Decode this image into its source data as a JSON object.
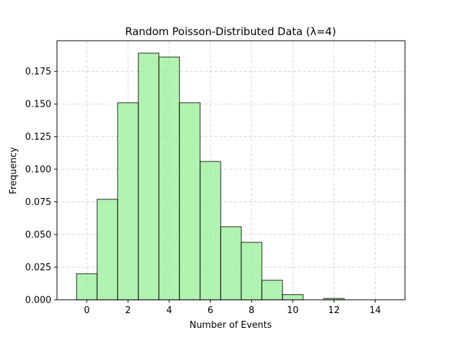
{
  "chart_data": {
    "type": "bar",
    "title": "Random Poisson-Distributed Data (λ=4)",
    "xlabel": "Number of Events",
    "ylabel": "Frequency",
    "x": [
      0,
      1,
      2,
      3,
      4,
      5,
      6,
      7,
      8,
      9,
      10,
      11,
      12,
      13,
      14
    ],
    "values": [
      0.02,
      0.077,
      0.151,
      0.189,
      0.186,
      0.151,
      0.106,
      0.056,
      0.044,
      0.015,
      0.004,
      0.0,
      0.001,
      0.0,
      0.0
    ],
    "xlim": [
      -1.45,
      15.45
    ],
    "ylim": [
      0,
      0.1985
    ],
    "xticks": [
      0,
      2,
      4,
      6,
      8,
      10,
      12,
      14
    ],
    "xtick_labels": [
      "0",
      "2",
      "4",
      "6",
      "8",
      "10",
      "12",
      "14"
    ],
    "yticks": [
      0,
      0.025,
      0.05,
      0.075,
      0.1,
      0.125,
      0.15,
      0.175
    ],
    "ytick_labels": [
      "0.000",
      "0.025",
      "0.050",
      "0.075",
      "0.100",
      "0.125",
      "0.150",
      "0.175"
    ],
    "grid": true,
    "colors": {
      "bar_fill": "#90ee90",
      "bar_edge": "#000000",
      "grid": "#cccccc"
    }
  }
}
